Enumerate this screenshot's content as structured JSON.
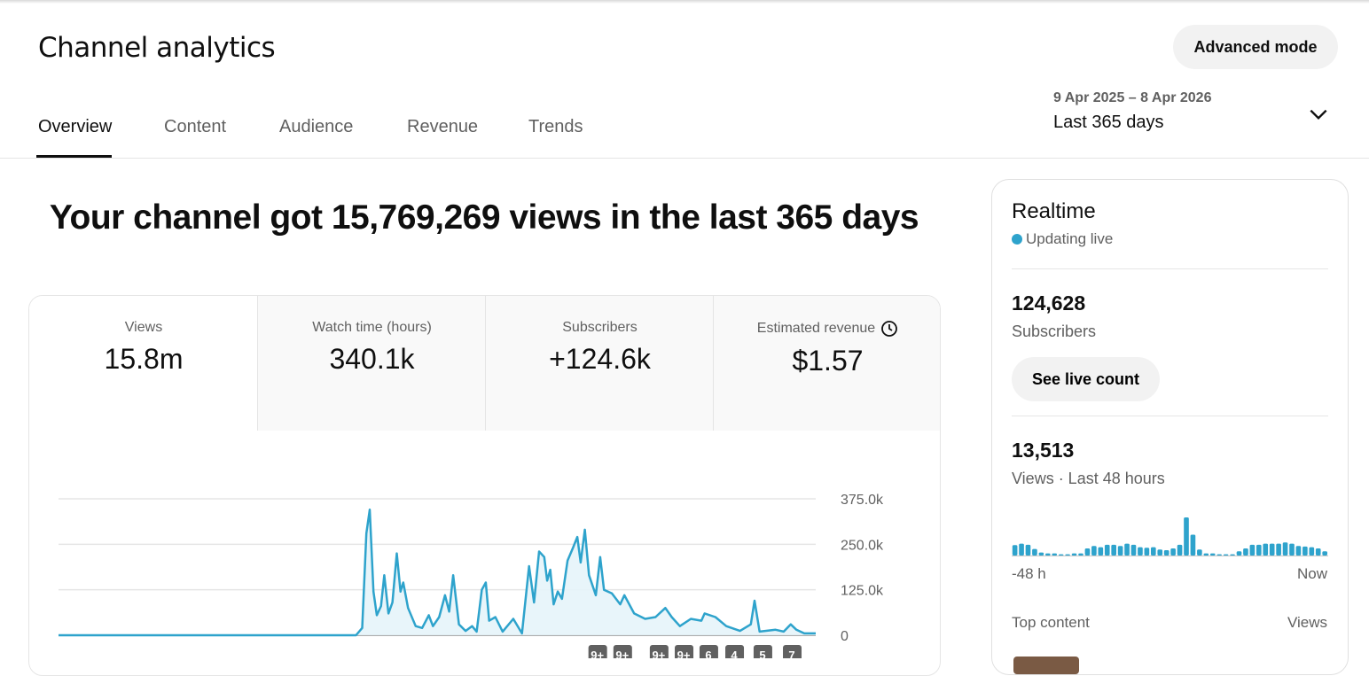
{
  "header": {
    "title": "Channel analytics",
    "advanced_mode": "Advanced mode"
  },
  "tabs": [
    {
      "label": "Overview",
      "active": true
    },
    {
      "label": "Content"
    },
    {
      "label": "Audience"
    },
    {
      "label": "Revenue"
    },
    {
      "label": "Trends"
    }
  ],
  "date_range": {
    "range": "9 Apr 2025 – 8 Apr 2026",
    "label": "Last 365 days"
  },
  "headline": "Your channel got 15,769,269 views in the last 365 days",
  "metrics": [
    {
      "label": "Views",
      "value": "15.8m"
    },
    {
      "label": "Watch time (hours)",
      "value": "340.1k"
    },
    {
      "label": "Subscribers",
      "value": "+124.6k"
    },
    {
      "label": "Estimated revenue",
      "value": "$1.57",
      "icon": "clock-icon"
    }
  ],
  "chart_data": {
    "type": "area",
    "series_name": "Views",
    "days": 365,
    "ylim": [
      0,
      375000
    ],
    "yticks": [
      "0",
      "125.0k",
      "250.0k",
      "375.0k"
    ],
    "ytick_values": [
      0,
      125000,
      250000,
      375000
    ],
    "color": "#2ea3cc",
    "anchors_day_value_k": [
      [
        0,
        0
      ],
      [
        143,
        0
      ],
      [
        146,
        20
      ],
      [
        148,
        280
      ],
      [
        149.6,
        345
      ],
      [
        151.4,
        120
      ],
      [
        153,
        55
      ],
      [
        155,
        80
      ],
      [
        156.6,
        165
      ],
      [
        158.6,
        60
      ],
      [
        160.5,
        90
      ],
      [
        162.6,
        225
      ],
      [
        164.4,
        120
      ],
      [
        165.7,
        145
      ],
      [
        168,
        75
      ],
      [
        171.7,
        25
      ],
      [
        174.8,
        20
      ],
      [
        178,
        55
      ],
      [
        180,
        25
      ],
      [
        183,
        50
      ],
      [
        185.8,
        110
      ],
      [
        187.8,
        65
      ],
      [
        189.7,
        165
      ],
      [
        192.5,
        30
      ],
      [
        195.7,
        12
      ],
      [
        198.8,
        25
      ],
      [
        201,
        10
      ],
      [
        203.5,
        125
      ],
      [
        205.4,
        145
      ],
      [
        207,
        40
      ],
      [
        210,
        50
      ],
      [
        213.5,
        10
      ],
      [
        218.6,
        45
      ],
      [
        222.8,
        5
      ],
      [
        226.2,
        190
      ],
      [
        228.6,
        90
      ],
      [
        231,
        230
      ],
      [
        233.5,
        215
      ],
      [
        234.9,
        150
      ],
      [
        236.4,
        180
      ],
      [
        238,
        85
      ],
      [
        240,
        120
      ],
      [
        242,
        100
      ],
      [
        244.7,
        205
      ],
      [
        247.3,
        240
      ],
      [
        249.4,
        270
      ],
      [
        251,
        200
      ],
      [
        253,
        290
      ],
      [
        255,
        165
      ],
      [
        258.3,
        110
      ],
      [
        260.4,
        215
      ],
      [
        262.2,
        125
      ],
      [
        266,
        115
      ],
      [
        270,
        85
      ],
      [
        272,
        110
      ],
      [
        276.7,
        60
      ],
      [
        282,
        45
      ],
      [
        287,
        50
      ],
      [
        291.7,
        75
      ],
      [
        294.8,
        50
      ],
      [
        298.7,
        25
      ],
      [
        304,
        45
      ],
      [
        309,
        40
      ],
      [
        310.6,
        60
      ],
      [
        315.8,
        50
      ],
      [
        321,
        25
      ],
      [
        327.6,
        12
      ],
      [
        332.8,
        30
      ],
      [
        334.6,
        95
      ],
      [
        337,
        10
      ],
      [
        344.7,
        15
      ],
      [
        348.6,
        10
      ],
      [
        352,
        30
      ],
      [
        354.7,
        15
      ],
      [
        358.5,
        5
      ],
      [
        364,
        5
      ]
    ],
    "markers": [
      {
        "day": 259,
        "label": "9+"
      },
      {
        "day": 271,
        "label": "9+"
      },
      {
        "day": 288.5,
        "label": "9+"
      },
      {
        "day": 300.5,
        "label": "9+"
      },
      {
        "day": 312.4,
        "label": "6"
      },
      {
        "day": 324.8,
        "label": "4"
      },
      {
        "day": 338.4,
        "label": "5"
      },
      {
        "day": 352.5,
        "label": "7"
      }
    ]
  },
  "realtime": {
    "title": "Realtime",
    "status": "Updating live",
    "live_color": "#2ea3cc",
    "subscribers": "124,628",
    "subscribers_label": "Subscribers",
    "see_live": "See live count",
    "views": "13,513",
    "views_label": "Views · Last 48 hours",
    "hourly_bars": [
      35,
      40,
      36,
      22,
      10,
      7,
      7,
      4,
      4,
      7,
      7,
      24,
      32,
      28,
      36,
      36,
      32,
      40,
      36,
      28,
      26,
      28,
      20,
      18,
      24,
      36,
      128,
      70,
      20,
      7,
      7,
      4,
      4,
      4,
      14,
      24,
      36,
      36,
      40,
      40,
      40,
      44,
      40,
      32,
      30,
      28,
      24,
      14
    ],
    "axis_start": "-48 h",
    "axis_end": "Now",
    "top_content": "Top content",
    "top_content_metric": "Views"
  }
}
